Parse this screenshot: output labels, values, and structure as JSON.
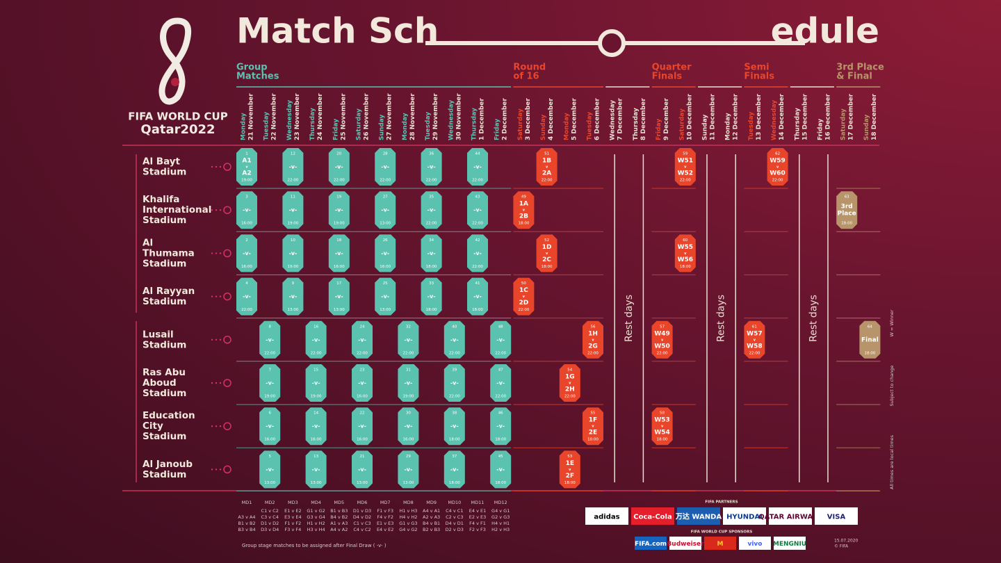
{
  "header": {
    "logo_line1": "FIFA WORLD CUP",
    "logo_line2": "Qatar2022",
    "title_left": "Match Sch",
    "title_right": "edule"
  },
  "stages": [
    {
      "title": [
        "Group",
        "Matches"
      ],
      "color": "#5cc2b0",
      "days": [
        {
          "weekday": "Monday",
          "date": "21 November"
        },
        {
          "weekday": "Tuesday",
          "date": "22 November"
        },
        {
          "weekday": "Wednesday",
          "date": "23 November"
        },
        {
          "weekday": "Thursday",
          "date": "24 November"
        },
        {
          "weekday": "Friday",
          "date": "25 November"
        },
        {
          "weekday": "Saturday",
          "date": "26 November"
        },
        {
          "weekday": "Sunday",
          "date": "27 November"
        },
        {
          "weekday": "Monday",
          "date": "28 November"
        },
        {
          "weekday": "Tuesday",
          "date": "29 November"
        },
        {
          "weekday": "Wednesday",
          "date": "30 November"
        },
        {
          "weekday": "Thursday",
          "date": "1 December"
        },
        {
          "weekday": "Friday",
          "date": "2 December"
        }
      ]
    },
    {
      "title": [
        "Round",
        "of 16"
      ],
      "color": "#e8452a",
      "days": [
        {
          "weekday": "Saturday",
          "date": "3 December"
        },
        {
          "weekday": "Sunday",
          "date": "4 December"
        },
        {
          "weekday": "Monday",
          "date": "5 December"
        },
        {
          "weekday": "Tuesday",
          "date": "6 December"
        }
      ]
    },
    {
      "rest_label": "Rest days",
      "color": "#eadfd2",
      "days": [
        {
          "weekday": "Wednesday",
          "date": "7 December"
        },
        {
          "weekday": "Thursday",
          "date": "8 December"
        }
      ]
    },
    {
      "title": [
        "Quarter",
        "Finals"
      ],
      "color": "#e8452a",
      "days": [
        {
          "weekday": "Friday",
          "date": "9 December"
        },
        {
          "weekday": "Saturday",
          "date": "10 December"
        }
      ]
    },
    {
      "rest_label": "Rest days",
      "color": "#eadfd2",
      "days": [
        {
          "weekday": "Sunday",
          "date": "11 December"
        },
        {
          "weekday": "Monday",
          "date": "12 December"
        }
      ]
    },
    {
      "title": [
        "Semi",
        "Finals"
      ],
      "color": "#e8452a",
      "days": [
        {
          "weekday": "Tuesday",
          "date": "13 December"
        },
        {
          "weekday": "Wednesday",
          "date": "14 December"
        }
      ]
    },
    {
      "rest_label": "Rest days",
      "color": "#eadfd2",
      "days": [
        {
          "weekday": "Thursday",
          "date": "15 December"
        },
        {
          "weekday": "Friday",
          "date": "16 December"
        }
      ]
    },
    {
      "title": [
        "3rd Place",
        "& Final"
      ],
      "color": "#b8946a",
      "days": [
        {
          "weekday": "Saturday",
          "date": "17 December"
        },
        {
          "weekday": "Sunday",
          "date": "18 December"
        }
      ]
    }
  ],
  "stadiums": [
    {
      "name": [
        "Al Bayt",
        "Stadium"
      ],
      "matches": [
        {
          "day": "21 November",
          "number": "1",
          "teams": [
            "A1",
            "v",
            "A2"
          ],
          "time": "19:00"
        },
        {
          "day": "23 November",
          "number": "12",
          "teams": [
            "-v-"
          ],
          "time": "22:00"
        },
        {
          "day": "25 November",
          "number": "20",
          "teams": [
            "-v-"
          ],
          "time": "22:00"
        },
        {
          "day": "27 November",
          "number": "28",
          "teams": [
            "-v-"
          ],
          "time": "22:00"
        },
        {
          "day": "29 November",
          "number": "36",
          "teams": [
            "-v-"
          ],
          "time": "22:00"
        },
        {
          "day": "1 December",
          "number": "44",
          "teams": [
            "-v-"
          ],
          "time": "22:00"
        },
        {
          "day": "4 December",
          "number": "51",
          "teams": [
            "1B",
            "v",
            "2A"
          ],
          "time": "22:00"
        },
        {
          "day": "10 December",
          "number": "59",
          "teams": [
            "W51",
            "v",
            "W52"
          ],
          "time": "22:00"
        },
        {
          "day": "14 December",
          "number": "62",
          "teams": [
            "W59",
            "v",
            "W60"
          ],
          "time": "22:00"
        }
      ]
    },
    {
      "name": [
        "Khalifa",
        "International",
        "Stadium"
      ],
      "matches": [
        {
          "day": "21 November",
          "number": "3",
          "teams": [
            "-v-"
          ],
          "time": "16:00"
        },
        {
          "day": "23 November",
          "number": "11",
          "teams": [
            "-v-"
          ],
          "time": "19:00"
        },
        {
          "day": "25 November",
          "number": "19",
          "teams": [
            "-v-"
          ],
          "time": "19:00"
        },
        {
          "day": "27 November",
          "number": "27",
          "teams": [
            "-v-"
          ],
          "time": "13:00"
        },
        {
          "day": "29 November",
          "number": "35",
          "teams": [
            "-v-"
          ],
          "time": "22:00"
        },
        {
          "day": "1 December",
          "number": "43",
          "teams": [
            "-v-"
          ],
          "time": "22:00"
        },
        {
          "day": "3 December",
          "number": "49",
          "teams": [
            "1A",
            "v",
            "2B"
          ],
          "time": "18:00"
        },
        {
          "day": "17 December",
          "number": "63",
          "teams": [
            "3rd",
            "Place"
          ],
          "time": "18:00"
        }
      ]
    },
    {
      "name": [
        "Al",
        "Thumama",
        "Stadium"
      ],
      "matches": [
        {
          "day": "21 November",
          "number": "2",
          "teams": [
            "-v-"
          ],
          "time": "16:00"
        },
        {
          "day": "23 November",
          "number": "10",
          "teams": [
            "-v-"
          ],
          "time": "19:00"
        },
        {
          "day": "25 November",
          "number": "18",
          "teams": [
            "-v-"
          ],
          "time": "16:00"
        },
        {
          "day": "27 November",
          "number": "26",
          "teams": [
            "-v-"
          ],
          "time": "16:00"
        },
        {
          "day": "29 November",
          "number": "34",
          "teams": [
            "-v-"
          ],
          "time": "18:00"
        },
        {
          "day": "1 December",
          "number": "42",
          "teams": [
            "-v-"
          ],
          "time": "22:00"
        },
        {
          "day": "4 December",
          "number": "52",
          "teams": [
            "1D",
            "v",
            "2C"
          ],
          "time": "18:00"
        },
        {
          "day": "10 December",
          "number": "60",
          "teams": [
            "W55",
            "v",
            "W56"
          ],
          "time": "18:00"
        }
      ]
    },
    {
      "name": [
        "Al Rayyan",
        "Stadium"
      ],
      "matches": [
        {
          "day": "21 November",
          "number": "4",
          "teams": [
            "-v-"
          ],
          "time": "22:00"
        },
        {
          "day": "23 November",
          "number": "9",
          "teams": [
            "-v-"
          ],
          "time": "13:00"
        },
        {
          "day": "25 November",
          "number": "17",
          "teams": [
            "-v-"
          ],
          "time": "13:00"
        },
        {
          "day": "27 November",
          "number": "25",
          "teams": [
            "-v-"
          ],
          "time": "13:00"
        },
        {
          "day": "29 November",
          "number": "33",
          "teams": [
            "-v-"
          ],
          "time": "18:00"
        },
        {
          "day": "1 December",
          "number": "41",
          "teams": [
            "-v-"
          ],
          "time": "18:00"
        },
        {
          "day": "3 December",
          "number": "50",
          "teams": [
            "1C",
            "v",
            "2D"
          ],
          "time": "22:00"
        }
      ]
    },
    {
      "name": [
        "Lusail",
        "Stadium"
      ],
      "matches": [
        {
          "day": "22 November",
          "number": "8",
          "teams": [
            "-v-"
          ],
          "time": "22:00"
        },
        {
          "day": "24 November",
          "number": "16",
          "teams": [
            "-v-"
          ],
          "time": "22:00"
        },
        {
          "day": "26 November",
          "number": "24",
          "teams": [
            "-v-"
          ],
          "time": "22:00"
        },
        {
          "day": "28 November",
          "number": "32",
          "teams": [
            "-v-"
          ],
          "time": "22:00"
        },
        {
          "day": "30 November",
          "number": "40",
          "teams": [
            "-v-"
          ],
          "time": "22:00"
        },
        {
          "day": "2 December",
          "number": "48",
          "teams": [
            "-v-"
          ],
          "time": "22:00"
        },
        {
          "day": "6 December",
          "number": "56",
          "teams": [
            "1H",
            "v",
            "2G"
          ],
          "time": "22:00"
        },
        {
          "day": "9 December",
          "number": "57",
          "teams": [
            "W49",
            "v",
            "W50"
          ],
          "time": "22:00"
        },
        {
          "day": "13 December",
          "number": "61",
          "teams": [
            "W57",
            "v",
            "W58"
          ],
          "time": "22:00"
        },
        {
          "day": "18 December",
          "number": "64",
          "teams": [
            "Final"
          ],
          "time": "18:00"
        }
      ]
    },
    {
      "name": [
        "Ras Abu",
        "Aboud",
        "Stadium"
      ],
      "matches": [
        {
          "day": "22 November",
          "number": "7",
          "teams": [
            "-v-"
          ],
          "time": "19:00"
        },
        {
          "day": "24 November",
          "number": "15",
          "teams": [
            "-v-"
          ],
          "time": "19:00"
        },
        {
          "day": "26 November",
          "number": "23",
          "teams": [
            "-v-"
          ],
          "time": "16:00"
        },
        {
          "day": "28 November",
          "number": "31",
          "teams": [
            "-v-"
          ],
          "time": "19:00"
        },
        {
          "day": "30 November",
          "number": "39",
          "teams": [
            "-v-"
          ],
          "time": "22:00"
        },
        {
          "day": "2 December",
          "number": "47",
          "teams": [
            "-v-"
          ],
          "time": "22:00"
        },
        {
          "day": "5 December",
          "number": "54",
          "teams": [
            "1G",
            "v",
            "2H"
          ],
          "time": "22:00"
        }
      ]
    },
    {
      "name": [
        "Education",
        "City",
        "Stadium"
      ],
      "matches": [
        {
          "day": "22 November",
          "number": "6",
          "teams": [
            "-v-"
          ],
          "time": "16:00"
        },
        {
          "day": "24 November",
          "number": "14",
          "teams": [
            "-v-"
          ],
          "time": "16:00"
        },
        {
          "day": "26 November",
          "number": "22",
          "teams": [
            "-v-"
          ],
          "time": "16:00"
        },
        {
          "day": "28 November",
          "number": "30",
          "teams": [
            "-v-"
          ],
          "time": "16:00"
        },
        {
          "day": "30 November",
          "number": "38",
          "teams": [
            "-v-"
          ],
          "time": "18:00"
        },
        {
          "day": "2 December",
          "number": "46",
          "teams": [
            "-v-"
          ],
          "time": "18:00"
        },
        {
          "day": "6 December",
          "number": "55",
          "teams": [
            "1F",
            "v",
            "2E"
          ],
          "time": "18:00"
        },
        {
          "day": "9 December",
          "number": "58",
          "teams": [
            "W53",
            "v",
            "W54"
          ],
          "time": "18:00"
        }
      ]
    },
    {
      "name": [
        "Al Janoub",
        "Stadium"
      ],
      "matches": [
        {
          "day": "22 November",
          "number": "5",
          "teams": [
            "-v-"
          ],
          "time": "13:00"
        },
        {
          "day": "24 November",
          "number": "13",
          "teams": [
            "-v-"
          ],
          "time": "13:00"
        },
        {
          "day": "26 November",
          "number": "21",
          "teams": [
            "-v-"
          ],
          "time": "13:00"
        },
        {
          "day": "28 November",
          "number": "29",
          "teams": [
            "-v-"
          ],
          "time": "13:00"
        },
        {
          "day": "30 November",
          "number": "37",
          "teams": [
            "-v-"
          ],
          "time": "18:00"
        },
        {
          "day": "2 December",
          "number": "45",
          "teams": [
            "-v-"
          ],
          "time": "18:00"
        },
        {
          "day": "5 December",
          "number": "53",
          "teams": [
            "1E",
            "v",
            "2F"
          ],
          "time": "18:00"
        }
      ]
    }
  ],
  "matchdays": [
    {
      "label": "MD1",
      "pairs": [
        "A3 v A4",
        "B1 v B2",
        "B3 v B4"
      ]
    },
    {
      "label": "MD2",
      "pairs": [
        "C1 v C2",
        "C3 v C4",
        "D1 v D2",
        "D3 v D4"
      ]
    },
    {
      "label": "MD3",
      "pairs": [
        "E1 v E2",
        "E3 v E4",
        "F1 v F2",
        "F3 v F4"
      ]
    },
    {
      "label": "MD4",
      "pairs": [
        "G1 v G2",
        "G3 v G4",
        "H1 v H2",
        "H3 v H4"
      ]
    },
    {
      "label": "MD5",
      "pairs": [
        "B1 v B3",
        "B4 v B2",
        "A1 v A3",
        "A4 v A2"
      ]
    },
    {
      "label": "MD6",
      "pairs": [
        "D1 v D3",
        "D4 v D2",
        "C1 v C3",
        "C4 v C2"
      ]
    },
    {
      "label": "MD7",
      "pairs": [
        "F1 v F3",
        "F4 v F2",
        "E1 v E3",
        "E4 v E2"
      ]
    },
    {
      "label": "MD8",
      "pairs": [
        "H1 v H3",
        "H4 v H2",
        "G1 v G3",
        "G4 v G2"
      ]
    },
    {
      "label": "MD9",
      "pairs": [
        "A4 v A1",
        "A2 v A3",
        "B4 v B1",
        "B2 v B3"
      ]
    },
    {
      "label": "MD10",
      "pairs": [
        "C4 v C1",
        "C2 v C3",
        "D4 v D1",
        "D2 v D3"
      ]
    },
    {
      "label": "MD11",
      "pairs": [
        "E4 v E1",
        "E2 v E3",
        "F4 v F1",
        "F2 v F3"
      ]
    },
    {
      "label": "MD12",
      "pairs": [
        "G4 v G1",
        "G2 v G3",
        "H4 v H1",
        "H2 v H3"
      ]
    }
  ],
  "footnote": "Group stage matches to be assigned after Final Draw ( -v- )",
  "side_notes": [
    "W = Winner",
    "Subject to change",
    "All times are local times"
  ],
  "partners": {
    "label": "FIFA PARTNERS",
    "logos": [
      {
        "text": "adidas",
        "bg": "#ffffff",
        "color": "#000000"
      },
      {
        "text": "Coca-Cola",
        "bg": "#e41e2b",
        "color": "#ffffff"
      },
      {
        "text": "万达 WANDA",
        "bg": "#1c5fb0",
        "color": "#ffffff"
      },
      {
        "text": "HYUNDAI",
        "bg": "#ffffff",
        "color": "#0b3c8c"
      },
      {
        "text": "QATAR AIRWAYS",
        "bg": "#ffffff",
        "color": "#5c0632"
      },
      {
        "text": "VISA",
        "bg": "#ffffff",
        "color": "#1a1f71"
      }
    ]
  },
  "sponsors": {
    "label": "FIFA WORLD CUP SPONSORS",
    "logos": [
      {
        "text": "FIFA.com",
        "bg": "#1565c0",
        "color": "#ffffff"
      },
      {
        "text": "Budweiser",
        "bg": "#ffffff",
        "color": "#c8102e"
      },
      {
        "text": "M",
        "bg": "#da291c",
        "color": "#ffc72c"
      },
      {
        "text": "vivo",
        "bg": "#ffffff",
        "color": "#415fff"
      },
      {
        "text": "MENGNIU",
        "bg": "#ffffff",
        "color": "#0a7d3b"
      }
    ]
  },
  "credit": [
    "15.07.2020",
    "© FIFA"
  ]
}
